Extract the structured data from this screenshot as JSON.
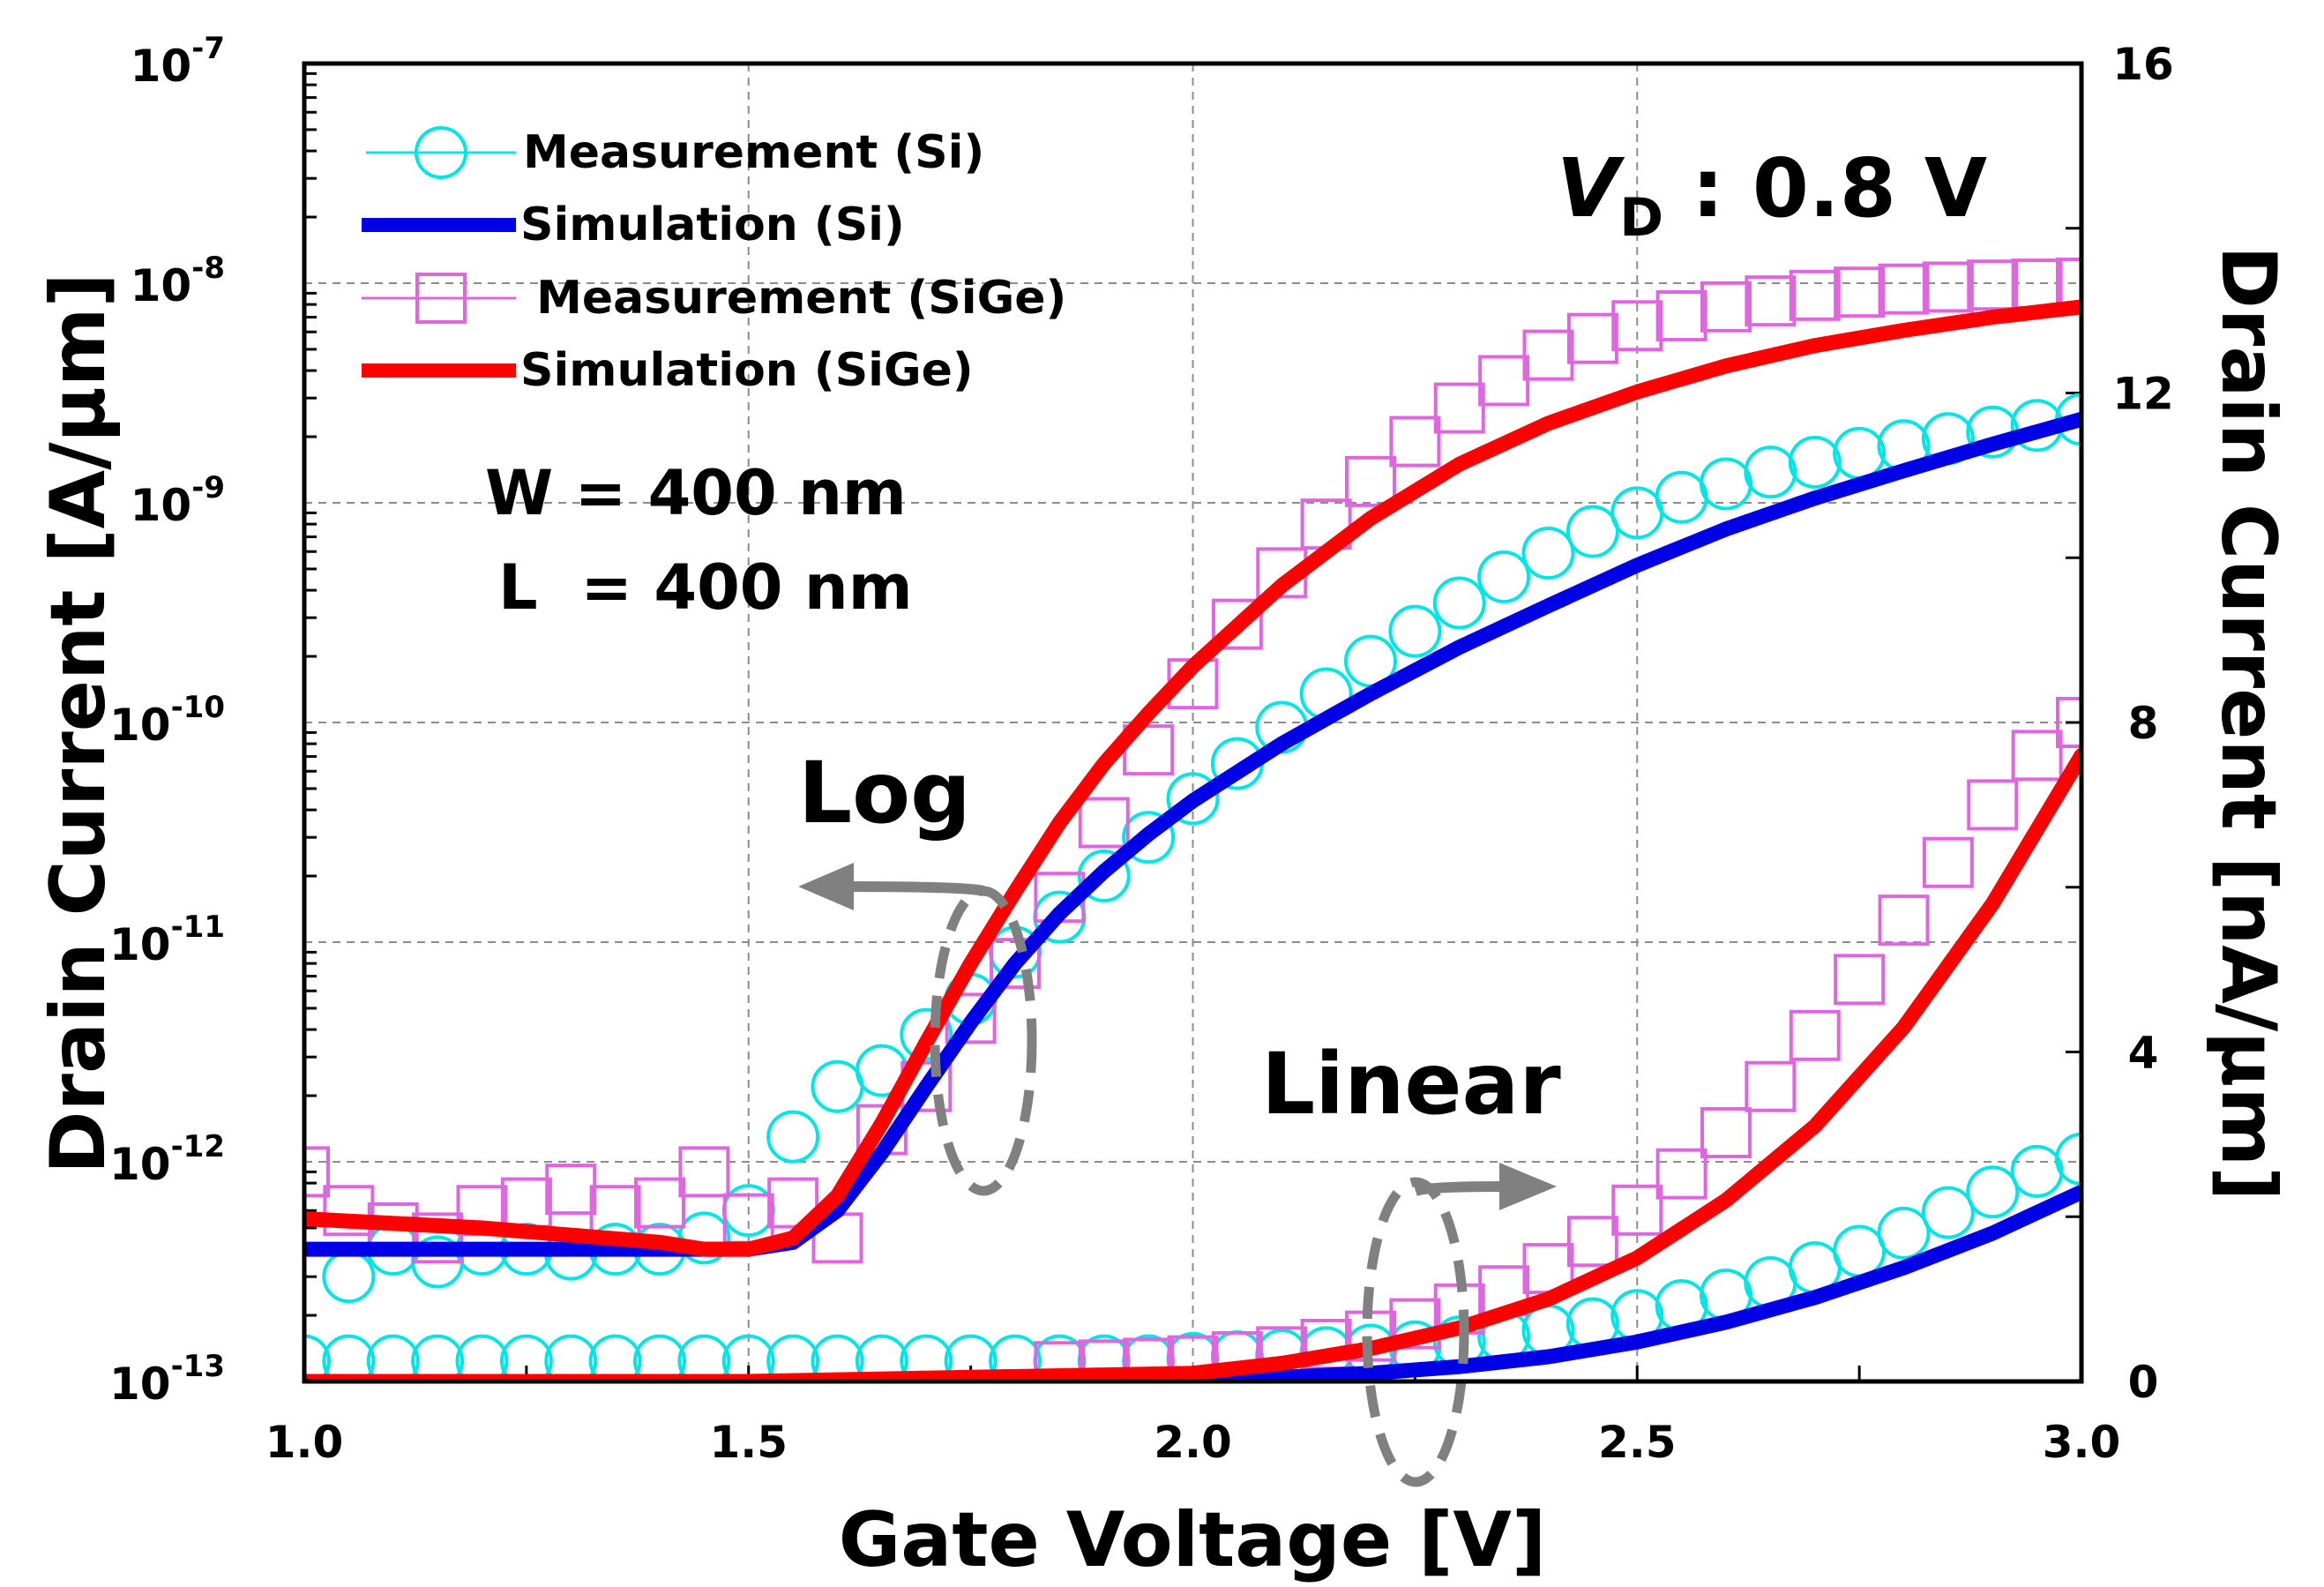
{
  "chart_data": {
    "type": "scatter",
    "xlabel": "Gate Voltage [V]",
    "ylabel_left": "Drain Current [A/μm]",
    "ylabel_right": "Drain Current [nA/μm]",
    "xlim": [
      1.0,
      3.0
    ],
    "ylim_left_log": [
      1e-13,
      1e-07
    ],
    "ylim_right": [
      0,
      16
    ],
    "x_ticks": [
      "1.0",
      "1.5",
      "2.0",
      "2.5",
      "3.0"
    ],
    "y_left_ticks": [
      {
        "base": "10",
        "exp": "-13"
      },
      {
        "base": "10",
        "exp": "-12"
      },
      {
        "base": "10",
        "exp": "-11"
      },
      {
        "base": "10",
        "exp": "-10"
      },
      {
        "base": "10",
        "exp": "-9"
      },
      {
        "base": "10",
        "exp": "-8"
      },
      {
        "base": "10",
        "exp": "-7"
      }
    ],
    "y_right_ticks": [
      "0",
      "4",
      "8",
      "12",
      "16"
    ],
    "grid": true,
    "legend_position": "top-left",
    "legend": [
      {
        "label": "Measurement (Si)",
        "style": "circle-marker",
        "color": "#00e5e5"
      },
      {
        "label": "Simulation (Si)",
        "style": "line",
        "color": "#0000e6"
      },
      {
        "label": " Measurement (SiGe)",
        "style": "square-marker",
        "color": "#e066e0"
      },
      {
        "label": "Simulation (SiGe)",
        "style": "line",
        "color": "#ff0000"
      }
    ],
    "annotations": {
      "vd_symbol": "V",
      "vd_subscript": "D",
      "vd_text": " : 0.8 V",
      "width": "W = 400 nm",
      "length": "L  = 400 nm",
      "log_label": "Log",
      "linear_label": "Linear"
    },
    "series": [
      {
        "name": "Measurement (Si)",
        "axis": "left-log",
        "kind": "markers-circle",
        "color": "#00e5e5",
        "x": [
          1.05,
          1.1,
          1.15,
          1.2,
          1.25,
          1.3,
          1.35,
          1.4,
          1.45,
          1.5,
          1.55,
          1.6,
          1.65,
          1.7,
          1.75,
          1.8,
          1.85,
          1.9,
          1.95,
          2.0,
          2.05,
          2.1,
          2.15,
          2.2,
          2.25,
          2.3,
          2.35,
          2.4,
          2.45,
          2.5,
          2.55,
          2.6,
          2.65,
          2.7,
          2.75,
          2.8,
          2.85,
          2.9,
          2.95,
          3.0
        ],
        "y": [
          3e-13,
          4e-13,
          3.5e-13,
          4e-13,
          4e-13,
          3.8e-13,
          4e-13,
          4e-13,
          4.5e-13,
          6e-13,
          1.3e-12,
          2.2e-12,
          2.6e-12,
          3.8e-12,
          5.5e-12,
          9e-12,
          1.3e-11,
          2e-11,
          3e-11,
          4.5e-11,
          6.5e-11,
          9.5e-11,
          1.35e-10,
          1.9e-10,
          2.6e-10,
          3.5e-10,
          4.6e-10,
          5.9e-10,
          7.4e-10,
          9e-10,
          1.06e-09,
          1.22e-09,
          1.38e-09,
          1.53e-09,
          1.68e-09,
          1.82e-09,
          1.96e-09,
          2.1e-09,
          2.25e-09,
          2.4e-09
        ]
      },
      {
        "name": "Simulation (Si)",
        "axis": "left-log",
        "kind": "line",
        "color": "#0000e6",
        "x": [
          1.0,
          1.2,
          1.4,
          1.5,
          1.55,
          1.6,
          1.65,
          1.7,
          1.75,
          1.8,
          1.85,
          1.9,
          1.95,
          2.0,
          2.1,
          2.2,
          2.3,
          2.4,
          2.5,
          2.6,
          2.7,
          2.8,
          2.9,
          3.0
        ],
        "y": [
          4e-13,
          4e-13,
          4e-13,
          4e-13,
          4.3e-13,
          6e-13,
          1.1e-12,
          2.2e-12,
          4.3e-12,
          8e-12,
          1.35e-11,
          2.1e-11,
          3.1e-11,
          4.4e-11,
          8e-11,
          1.35e-10,
          2.2e-10,
          3.4e-10,
          5.2e-10,
          7.6e-10,
          1.05e-09,
          1.4e-09,
          1.85e-09,
          2.4e-09
        ]
      },
      {
        "name": " Measurement (SiGe)",
        "axis": "left-log",
        "kind": "markers-square",
        "color": "#e066e0",
        "x": [
          1.0,
          1.05,
          1.1,
          1.15,
          1.2,
          1.25,
          1.3,
          1.35,
          1.4,
          1.45,
          1.5,
          1.55,
          1.6,
          1.65,
          1.7,
          1.75,
          1.8,
          1.85,
          1.9,
          1.95,
          2.0,
          2.05,
          2.1,
          2.15,
          2.2,
          2.25,
          2.3,
          2.35,
          2.4,
          2.45,
          2.5,
          2.55,
          2.6,
          2.65,
          2.7,
          2.75,
          2.8,
          2.85,
          2.9,
          2.95,
          3.0
        ],
        "y": [
          9e-13,
          6e-13,
          5e-13,
          4.5e-13,
          6e-13,
          6.5e-13,
          7.5e-13,
          6e-13,
          6.5e-13,
          9e-13,
          5.5e-13,
          6.5e-13,
          4.5e-13,
          1.4e-12,
          2.2e-12,
          4.5e-12,
          8e-12,
          1.6e-11,
          3.5e-11,
          7.5e-11,
          1.5e-10,
          2.8e-10,
          4.8e-10,
          8e-10,
          1.25e-09,
          1.9e-09,
          2.7e-09,
          3.6e-09,
          4.7e-09,
          5.6e-09,
          6.4e-09,
          7.1e-09,
          7.8e-09,
          8.3e-09,
          8.8e-09,
          9.1e-09,
          9.4e-09,
          9.6e-09,
          9.8e-09,
          9.9e-09,
          1e-08
        ]
      },
      {
        "name": "Simulation (SiGe)",
        "axis": "left-log",
        "kind": "line",
        "color": "#ff0000",
        "x": [
          1.0,
          1.2,
          1.4,
          1.45,
          1.5,
          1.55,
          1.6,
          1.65,
          1.7,
          1.75,
          1.8,
          1.85,
          1.9,
          1.95,
          2.0,
          2.1,
          2.2,
          2.3,
          2.4,
          2.5,
          2.6,
          2.7,
          2.8,
          2.9,
          3.0
        ],
        "y": [
          5.5e-13,
          5e-13,
          4.3e-13,
          4e-13,
          4e-13,
          4.5e-13,
          7e-13,
          1.5e-12,
          3.5e-12,
          8e-12,
          1.7e-11,
          3.5e-11,
          6.5e-11,
          1.1e-10,
          1.8e-10,
          4.2e-10,
          8.5e-10,
          1.5e-09,
          2.3e-09,
          3.2e-09,
          4.2e-09,
          5.2e-09,
          6.1e-09,
          7e-09,
          7.8e-09
        ]
      },
      {
        "name": "Measurement (Si)",
        "axis": "right-linear",
        "kind": "markers-circle",
        "color": "#00e5e5",
        "x": [
          1.0,
          1.05,
          1.1,
          1.15,
          1.2,
          1.25,
          1.3,
          1.35,
          1.4,
          1.45,
          1.5,
          1.55,
          1.6,
          1.65,
          1.7,
          1.75,
          1.8,
          1.85,
          1.9,
          1.95,
          2.0,
          2.05,
          2.1,
          2.15,
          2.2,
          2.25,
          2.3,
          2.35,
          2.4,
          2.45,
          2.5,
          2.55,
          2.6,
          2.65,
          2.7,
          2.75,
          2.8,
          2.85,
          2.9,
          2.95,
          3.0
        ],
        "y": [
          0.25,
          0.25,
          0.25,
          0.25,
          0.25,
          0.25,
          0.25,
          0.25,
          0.25,
          0.25,
          0.25,
          0.25,
          0.25,
          0.25,
          0.25,
          0.25,
          0.25,
          0.25,
          0.25,
          0.25,
          0.28,
          0.3,
          0.32,
          0.35,
          0.38,
          0.42,
          0.48,
          0.55,
          0.62,
          0.7,
          0.8,
          0.92,
          1.05,
          1.2,
          1.38,
          1.58,
          1.8,
          2.05,
          2.3,
          2.55,
          2.7
        ]
      },
      {
        "name": "Simulation (Si)",
        "axis": "right-linear",
        "kind": "line",
        "color": "#0000e6",
        "x": [
          1.0,
          1.5,
          2.0,
          2.1,
          2.2,
          2.3,
          2.4,
          2.5,
          2.6,
          2.7,
          2.8,
          2.9,
          3.0
        ],
        "y": [
          0.0,
          0.0,
          0.02,
          0.05,
          0.1,
          0.18,
          0.3,
          0.48,
          0.72,
          1.02,
          1.38,
          1.8,
          2.3
        ]
      },
      {
        "name": " Measurement (SiGe)",
        "axis": "right-linear",
        "kind": "markers-square",
        "color": "#e066e0",
        "x": [
          1.85,
          1.9,
          1.95,
          2.0,
          2.05,
          2.1,
          2.15,
          2.2,
          2.25,
          2.3,
          2.35,
          2.4,
          2.45,
          2.5,
          2.55,
          2.6,
          2.65,
          2.7,
          2.75,
          2.8,
          2.85,
          2.9,
          2.95,
          3.0
        ],
        "y": [
          0.18,
          0.2,
          0.22,
          0.25,
          0.3,
          0.36,
          0.45,
          0.55,
          0.7,
          0.88,
          1.1,
          1.37,
          1.7,
          2.08,
          2.52,
          3.02,
          3.58,
          4.2,
          4.88,
          5.6,
          6.3,
          7.0,
          7.6,
          8.0
        ]
      },
      {
        "name": "Simulation (SiGe)",
        "axis": "right-linear",
        "kind": "line",
        "color": "#ff0000",
        "x": [
          1.0,
          1.5,
          2.0,
          2.1,
          2.2,
          2.3,
          2.4,
          2.5,
          2.6,
          2.7,
          2.8,
          2.9,
          3.0
        ],
        "y": [
          0.0,
          0.0,
          0.1,
          0.22,
          0.4,
          0.65,
          1.0,
          1.5,
          2.2,
          3.1,
          4.3,
          5.8,
          7.6
        ]
      }
    ]
  }
}
